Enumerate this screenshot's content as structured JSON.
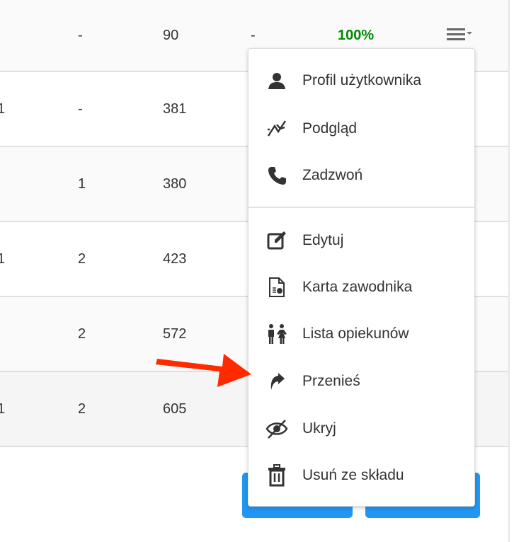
{
  "table": {
    "rows": [
      {
        "a": "",
        "b": "-",
        "c": "90",
        "d": "-",
        "e": "100%"
      },
      {
        "a": "1",
        "b": "-",
        "c": "381",
        "d": "",
        "e": ""
      },
      {
        "a": "",
        "b": "1",
        "c": "380",
        "d": "",
        "e": ""
      },
      {
        "a": "1",
        "b": "2",
        "c": "423",
        "d": "",
        "e": ""
      },
      {
        "a": "",
        "b": "2",
        "c": "572",
        "d": "",
        "e": ""
      },
      {
        "a": "1",
        "b": "2",
        "c": "605",
        "d": "",
        "e": ""
      }
    ]
  },
  "colors": {
    "percent": "#008a00",
    "accent": "#2196f3",
    "arrow": "#ff2a00"
  },
  "menu": {
    "items": [
      {
        "label": "Profil użytkownika",
        "icon": "user-icon"
      },
      {
        "label": "Podgląd",
        "icon": "chart-line-icon"
      },
      {
        "label": "Zadzwoń",
        "icon": "phone-icon"
      },
      {
        "label": "Edytuj",
        "icon": "edit-icon"
      },
      {
        "label": "Karta zawodnika",
        "icon": "file-chart-icon"
      },
      {
        "label": "Lista opiekunów",
        "icon": "guardians-icon"
      },
      {
        "label": "Przenieś",
        "icon": "share-arrow-icon"
      },
      {
        "label": "Ukryj",
        "icon": "eye-slash-icon"
      },
      {
        "label": "Usuń ze składu",
        "icon": "trash-icon"
      }
    ]
  }
}
